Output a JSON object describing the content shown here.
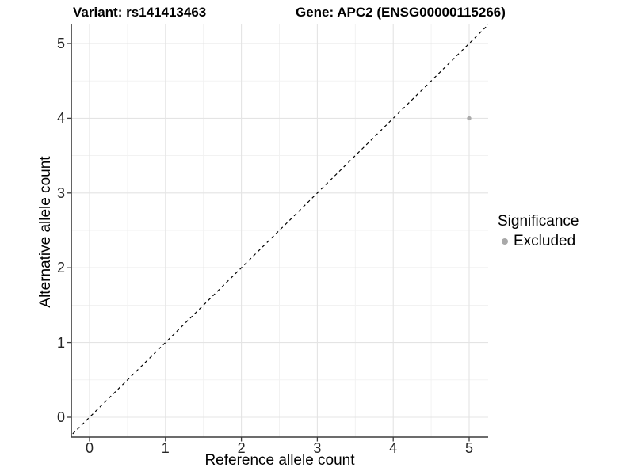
{
  "header": {
    "variant_title": "Variant: rs141413463",
    "gene_title": "Gene: APC2 (ENSG00000115266)"
  },
  "axes": {
    "x": {
      "label": "Reference allele count",
      "tick_labels": [
        "0",
        "1",
        "2",
        "3",
        "4",
        "5"
      ]
    },
    "y": {
      "label": "Alternative allele count",
      "tick_labels": [
        "0",
        "1",
        "2",
        "3",
        "4",
        "5"
      ]
    }
  },
  "legend": {
    "title": "Significance",
    "items": [
      {
        "label": "Excluded",
        "color": "#a9a9a9"
      }
    ]
  },
  "chart_data": {
    "type": "scatter",
    "title_left": "Variant: rs141413463",
    "title_right": "Gene: APC2 (ENSG00000115266)",
    "xlabel": "Reference allele count",
    "ylabel": "Alternative allele count",
    "xlim": [
      -0.25,
      5.25
    ],
    "ylim": [
      -0.25,
      5.25
    ],
    "x_ticks": [
      0,
      1,
      2,
      3,
      4,
      5
    ],
    "y_ticks": [
      0,
      1,
      2,
      3,
      4,
      5
    ],
    "grid": "major+minor",
    "legend_position": "right",
    "series": [
      {
        "name": "Excluded",
        "color": "#ababab",
        "points": [
          {
            "x": 5,
            "y": 4
          }
        ]
      }
    ],
    "reference_line": {
      "type": "identity y=x",
      "style": "dashed",
      "color": "#000000"
    }
  },
  "colors": {
    "background": "#ffffff",
    "grid_major": "#e4e4e4",
    "grid_minor": "#f1f1f1",
    "axis_line": "#3c3c3c",
    "tick_mark": "#3c3c3c",
    "tick_text": "#262626",
    "point": "#ababab",
    "reference_line": "#000000"
  }
}
